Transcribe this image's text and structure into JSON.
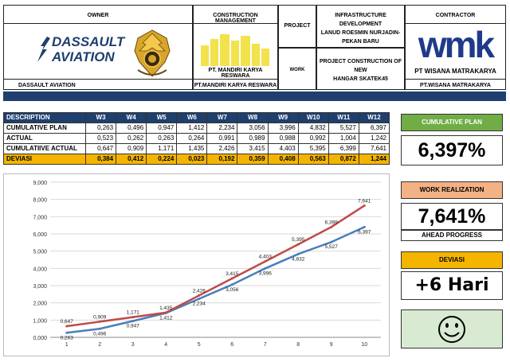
{
  "header": {
    "owner_title": "OWNER",
    "owner_logo_line1": "DASSAULT",
    "owner_logo_line2": "AVIATION",
    "owner_name": "DASSAULT AVIATION",
    "cm_title": "CONSTRUCTION MANAGEMENT",
    "cm_logo_text": "PT. MANDIRI KARYA RESWARA",
    "cm_name": "PT.MANDIRI KARYA RESWARA",
    "project_label": "PROJECT",
    "project_value_line1": "INFRASTRUCTURE DEVELOPMENT",
    "project_value_line2": "LANUD ROESMIN NURJADIN-",
    "project_value_line3": "PEKAN BARU",
    "work_label": "WORK",
    "work_value_line1": "PROJECT CONSTRUCTION OF NEW",
    "work_value_line2": "HANGAR SKATEK45",
    "contractor_title": "CONTRACTOR",
    "contractor_logo": "wmk",
    "contractor_logo_text": "PT WISANA MATRAKARYA",
    "contractor_name": "PT.WISANA MATRAKARYA"
  },
  "table": {
    "columns": [
      "DESCRIPTION",
      "W3",
      "W4",
      "W5",
      "W6",
      "W7",
      "W8",
      "W9",
      "W10",
      "W11",
      "W12"
    ],
    "rows": [
      {
        "label": "CUMULATIVE PLAN",
        "values": [
          "0,263",
          "0,496",
          "0,947",
          "1,412",
          "2,234",
          "3,056",
          "3,996",
          "4,832",
          "5,527",
          "6,397"
        ]
      },
      {
        "label": "ACTUAL",
        "values": [
          "0,523",
          "0,262",
          "0,263",
          "0,264",
          "0,991",
          "0,989",
          "0,988",
          "0,992",
          "1,004",
          "1,242"
        ]
      },
      {
        "label": "CUMULATIIVE ACTUAL",
        "values": [
          "0,647",
          "0,909",
          "1,171",
          "1,435",
          "2,426",
          "3,415",
          "4,403",
          "5,395",
          "6,399",
          "7,641"
        ]
      },
      {
        "label": "DEVIASI",
        "values": [
          "0,384",
          "0,412",
          "0,224",
          "0,023",
          "0,192",
          "0,359",
          "0,408",
          "0,563",
          "0,872",
          "1,244"
        ]
      }
    ]
  },
  "panels": {
    "plan_label": "CUMULATIVE PLAN",
    "plan_value": "6,397%",
    "realization_label": "WORK REALIZATION",
    "realization_value": "7,641%",
    "realization_status": "AHEAD PROGRESS",
    "deviasi_label": "DEVIASI",
    "deviasi_value": "+6 Hari",
    "status_icon": "smiley-face-icon"
  },
  "colors": {
    "navy": "#1f3f6e",
    "plan_line": "#4a7ebb",
    "actual_line": "#be4b48",
    "green_header": "#70ad47",
    "salmon_header": "#f4b183",
    "yellow_header": "#f4b400",
    "light_green_panel": "#d9ead3"
  },
  "chart_data": {
    "type": "line",
    "x": [
      1,
      2,
      3,
      4,
      5,
      6,
      7,
      8,
      9,
      10
    ],
    "categories": [
      "1",
      "2",
      "3",
      "4",
      "5",
      "6",
      "7",
      "8",
      "9",
      "10"
    ],
    "series": [
      {
        "values": [
          0.263,
          0.496,
          0.947,
          1.412,
          2.234,
          3.056,
          3.996,
          4.832,
          5.527,
          6.397
        ],
        "labels": [
          "0,263",
          "0,496",
          "0,947",
          "1,412",
          "2,234",
          "3,056",
          "3,996",
          "4,832",
          "5,527",
          "6,397"
        ],
        "color": "#4a7ebb"
      },
      {
        "values": [
          0.647,
          0.909,
          1.171,
          1.435,
          2.426,
          3.415,
          4.403,
          5.395,
          6.399,
          7.641
        ],
        "labels": [
          "0,647",
          "0,909",
          "1,171",
          "1,435",
          "2,426",
          "3,415",
          "4,403",
          "5,395",
          "6,399",
          "7,641"
        ],
        "color": "#be4b48"
      }
    ],
    "yticks": [
      "0,000",
      "1,000",
      "2,000",
      "3,000",
      "4,000",
      "5,000",
      "6,000",
      "7,000",
      "8,000",
      "9,000"
    ],
    "ylim": [
      0,
      9
    ],
    "grid": true,
    "title": "",
    "xlabel": "",
    "ylabel": ""
  }
}
